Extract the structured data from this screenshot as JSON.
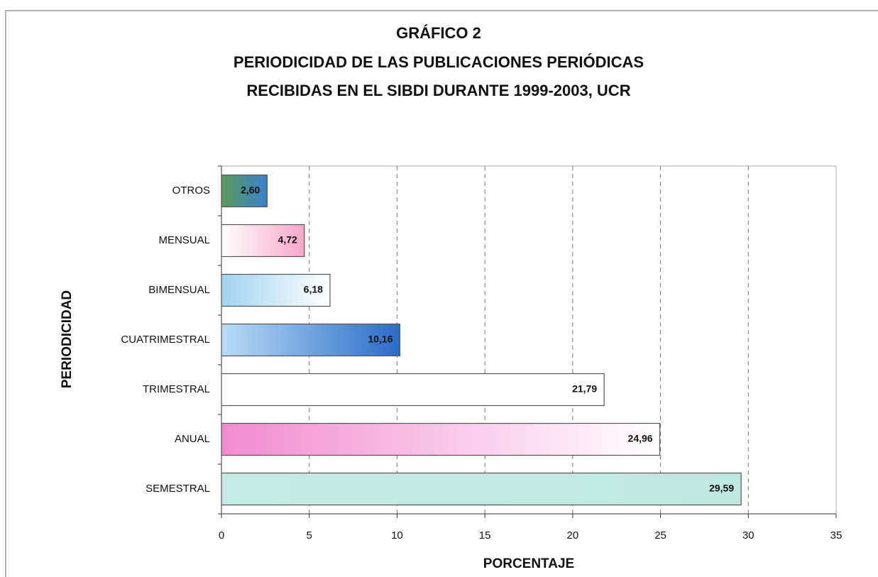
{
  "chart_data": {
    "type": "barh",
    "title": [
      "GRÁFICO 2",
      "PERIODICIDAD DE LAS PUBLICACIONES PERIÓDICAS",
      "RECIBIDAS EN EL SIBDI DURANTE 1999-2003, UCR"
    ],
    "xlabel": "PORCENTAJE",
    "ylabel": "PERIODICIDAD",
    "categories": [
      "OTROS",
      "MENSUAL",
      "BIMENSUAL",
      "CUATRIMESTRAL",
      "TRIMESTRAL",
      "ANUAL",
      "SEMESTRAL"
    ],
    "values": [
      2.6,
      4.72,
      6.18,
      10.16,
      21.79,
      24.96,
      29.59
    ],
    "value_labels": [
      "2,60",
      "4,72",
      "6,18",
      "10,16",
      "21,79",
      "24,96",
      "29,59"
    ],
    "colors": [
      [
        "#5a9a5a",
        "#3a80d0"
      ],
      [
        "#ffffff",
        "#f7a6c8"
      ],
      [
        "#9fd4f0",
        "#ffffff"
      ],
      [
        "#b9dcf7",
        "#2a6cc8"
      ],
      [
        "#ffffff",
        "#ffffff"
      ],
      [
        "#f28ad0",
        "#ffffff"
      ],
      [
        "#c4ebe3",
        "#bfe8e0"
      ]
    ],
    "xlim": [
      0,
      35
    ],
    "xticks": [
      0,
      5,
      10,
      15,
      20,
      25,
      30,
      35
    ],
    "grid": true
  }
}
